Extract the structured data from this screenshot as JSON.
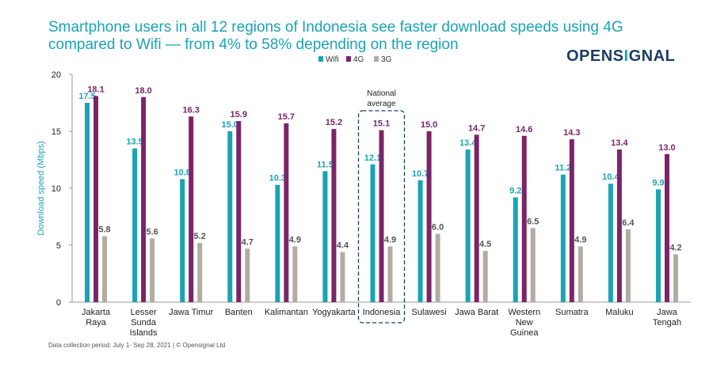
{
  "header": {
    "title_line1": "Smartphone users in all 12 regions of Indonesia see faster download speeds using 4G",
    "title_line2": "compared to Wifi — from 4% to 58% depending on the region"
  },
  "logo": {
    "text_before": "OPENS",
    "text_signal": "I",
    "text_after": "GNAL"
  },
  "footnote": "Data collection period: July 1- Sep 28, 2021 | © Opensignal Ltd",
  "highlight": {
    "label_line1": "National",
    "label_line2": "average"
  },
  "colors": {
    "wifi": "#1aa3b7",
    "4g": "#7b2468",
    "3g": "#b3aca3",
    "accent": "#1aa3b7",
    "brand": "#1b3d63"
  },
  "chart_data": {
    "type": "bar",
    "ylabel": "Download speed (Mbps)",
    "ylim": [
      0,
      20
    ],
    "yticks": [
      0,
      5,
      10,
      15,
      20
    ],
    "grid": false,
    "legend_position": "top-center",
    "categories": [
      [
        "Jakarta",
        "Raya"
      ],
      [
        "Lesser",
        "Sunda",
        "Islands"
      ],
      [
        "Jawa Timur"
      ],
      [
        "Banten"
      ],
      [
        "Kalimantan"
      ],
      [
        "Yogyakarta"
      ],
      [
        "Indonesia"
      ],
      [
        "Sulawesi"
      ],
      [
        "Jawa Barat"
      ],
      [
        "Western",
        "New",
        "Guinea"
      ],
      [
        "Sumatra"
      ],
      [
        "Maluku"
      ],
      [
        "Jawa",
        "Tengah"
      ]
    ],
    "series": [
      {
        "name": "Wifi",
        "values": [
          17.5,
          13.5,
          10.8,
          15.0,
          10.3,
          11.5,
          12.1,
          10.7,
          13.4,
          9.2,
          11.2,
          10.4,
          9.9
        ]
      },
      {
        "name": "4G",
        "values": [
          18.1,
          18.0,
          16.3,
          15.9,
          15.7,
          15.2,
          15.1,
          15.0,
          14.7,
          14.6,
          14.3,
          13.4,
          13.0
        ]
      },
      {
        "name": "3G",
        "values": [
          5.8,
          5.6,
          5.2,
          4.7,
          4.9,
          4.4,
          4.9,
          6.0,
          4.5,
          6.5,
          4.9,
          6.4,
          4.2
        ]
      }
    ]
  }
}
